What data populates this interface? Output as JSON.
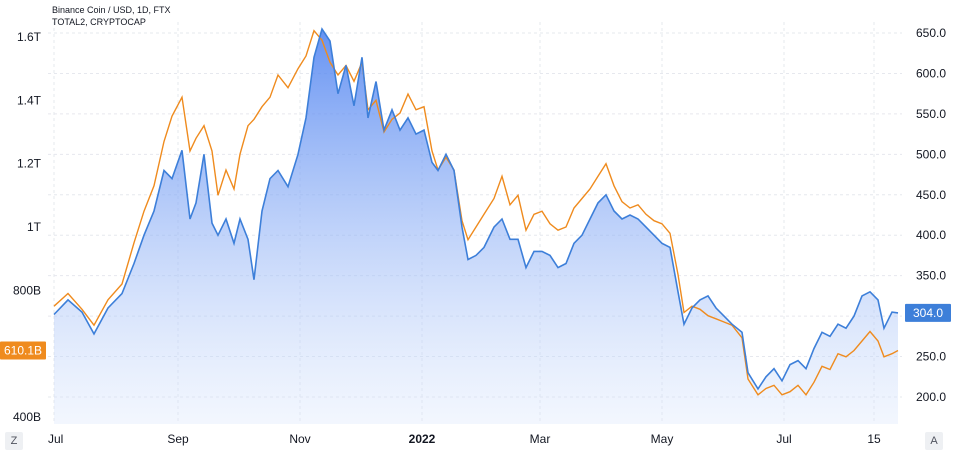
{
  "chart_data": {
    "type": "line",
    "legend": [
      "Binance Coin / USD, 1D, FTX",
      "TOTAL2, CRYPTOCAP"
    ],
    "x_labels": [
      "Jul",
      "Sep",
      "Nov",
      "2022",
      "Mar",
      "May",
      "Jul",
      "15"
    ],
    "left_axis": {
      "ticks": [
        "1.6T",
        "1.4T",
        "1.2T",
        "1T",
        "800B",
        "400B"
      ],
      "ylim": [
        400,
        1600
      ],
      "unit": "B"
    },
    "right_axis": {
      "ticks": [
        "650.0",
        "600.0",
        "550.0",
        "500.0",
        "450.0",
        "400.0",
        "350.0",
        "300.0",
        "250.0",
        "200.0"
      ],
      "ylim": [
        200,
        650
      ]
    },
    "series": [
      {
        "name": "Binance Coin / USD, 1D, FTX",
        "axis": "right",
        "color": "#3d7fd9",
        "last_value": "304.0",
        "points": [
          [
            "2021-07-01",
            302
          ],
          [
            "2021-07-08",
            320
          ],
          [
            "2021-07-15",
            305
          ],
          [
            "2021-07-21",
            278
          ],
          [
            "2021-07-28",
            310
          ],
          [
            "2021-08-04",
            328
          ],
          [
            "2021-08-10",
            365
          ],
          [
            "2021-08-15",
            400
          ],
          [
            "2021-08-20",
            430
          ],
          [
            "2021-08-25",
            480
          ],
          [
            "2021-08-29",
            470
          ],
          [
            "2021-09-03",
            505
          ],
          [
            "2021-09-07",
            420
          ],
          [
            "2021-09-10",
            440
          ],
          [
            "2021-09-14",
            500
          ],
          [
            "2021-09-18",
            415
          ],
          [
            "2021-09-21",
            400
          ],
          [
            "2021-09-25",
            420
          ],
          [
            "2021-09-29",
            390
          ],
          [
            "2021-10-02",
            420
          ],
          [
            "2021-10-06",
            395
          ],
          [
            "2021-10-09",
            345
          ],
          [
            "2021-10-13",
            430
          ],
          [
            "2021-10-17",
            470
          ],
          [
            "2021-10-21",
            480
          ],
          [
            "2021-10-26",
            460
          ],
          [
            "2021-10-31",
            500
          ],
          [
            "2021-11-04",
            545
          ],
          [
            "2021-11-08",
            620
          ],
          [
            "2021-11-12",
            655
          ],
          [
            "2021-11-16",
            640
          ],
          [
            "2021-11-20",
            575
          ],
          [
            "2021-11-24",
            610
          ],
          [
            "2021-11-28",
            560
          ],
          [
            "2021-12-02",
            620
          ],
          [
            "2021-12-05",
            545
          ],
          [
            "2021-12-09",
            590
          ],
          [
            "2021-12-13",
            530
          ],
          [
            "2021-12-17",
            555
          ],
          [
            "2021-12-21",
            530
          ],
          [
            "2021-12-25",
            545
          ],
          [
            "2021-12-29",
            525
          ],
          [
            "2022-01-02",
            530
          ],
          [
            "2022-01-06",
            490
          ],
          [
            "2022-01-09",
            480
          ],
          [
            "2022-01-13",
            500
          ],
          [
            "2022-01-17",
            480
          ],
          [
            "2022-01-21",
            410
          ],
          [
            "2022-01-24",
            370
          ],
          [
            "2022-01-28",
            375
          ],
          [
            "2022-02-01",
            385
          ],
          [
            "2022-02-06",
            410
          ],
          [
            "2022-02-10",
            420
          ],
          [
            "2022-02-14",
            395
          ],
          [
            "2022-02-18",
            395
          ],
          [
            "2022-02-22",
            360
          ],
          [
            "2022-02-26",
            380
          ],
          [
            "2022-03-02",
            380
          ],
          [
            "2022-03-06",
            375
          ],
          [
            "2022-03-10",
            360
          ],
          [
            "2022-03-14",
            365
          ],
          [
            "2022-03-18",
            390
          ],
          [
            "2022-03-22",
            400
          ],
          [
            "2022-03-26",
            420
          ],
          [
            "2022-03-30",
            440
          ],
          [
            "2022-04-03",
            450
          ],
          [
            "2022-04-07",
            430
          ],
          [
            "2022-04-11",
            420
          ],
          [
            "2022-04-15",
            425
          ],
          [
            "2022-04-19",
            420
          ],
          [
            "2022-04-23",
            410
          ],
          [
            "2022-04-27",
            400
          ],
          [
            "2022-05-01",
            390
          ],
          [
            "2022-05-05",
            385
          ],
          [
            "2022-05-09",
            330
          ],
          [
            "2022-05-12",
            290
          ],
          [
            "2022-05-16",
            310
          ],
          [
            "2022-05-20",
            320
          ],
          [
            "2022-05-24",
            325
          ],
          [
            "2022-05-28",
            310
          ],
          [
            "2022-06-01",
            300
          ],
          [
            "2022-06-05",
            290
          ],
          [
            "2022-06-10",
            280
          ],
          [
            "2022-06-13",
            230
          ],
          [
            "2022-06-18",
            210
          ],
          [
            "2022-06-22",
            225
          ],
          [
            "2022-06-26",
            235
          ],
          [
            "2022-06-30",
            220
          ],
          [
            "2022-07-04",
            240
          ],
          [
            "2022-07-08",
            245
          ],
          [
            "2022-07-12",
            235
          ],
          [
            "2022-07-16",
            260
          ],
          [
            "2022-07-20",
            280
          ],
          [
            "2022-07-24",
            275
          ],
          [
            "2022-07-28",
            290
          ],
          [
            "2022-08-01",
            285
          ],
          [
            "2022-08-05",
            300
          ],
          [
            "2022-08-09",
            325
          ],
          [
            "2022-08-13",
            330
          ],
          [
            "2022-08-17",
            320
          ],
          [
            "2022-08-20",
            285
          ],
          [
            "2022-08-24",
            305
          ],
          [
            "2022-08-27",
            304
          ]
        ]
      },
      {
        "name": "TOTAL2, CRYPTOCAP",
        "axis": "left",
        "color": "#ef8b1e",
        "last_value": "610.1B",
        "points": [
          [
            "2021-07-01",
            750
          ],
          [
            "2021-07-08",
            790
          ],
          [
            "2021-07-15",
            740
          ],
          [
            "2021-07-21",
            690
          ],
          [
            "2021-07-28",
            770
          ],
          [
            "2021-08-04",
            820
          ],
          [
            "2021-08-10",
            950
          ],
          [
            "2021-08-15",
            1050
          ],
          [
            "2021-08-20",
            1130
          ],
          [
            "2021-08-25",
            1270
          ],
          [
            "2021-08-29",
            1350
          ],
          [
            "2021-09-03",
            1410
          ],
          [
            "2021-09-07",
            1240
          ],
          [
            "2021-09-10",
            1280
          ],
          [
            "2021-09-14",
            1320
          ],
          [
            "2021-09-18",
            1240
          ],
          [
            "2021-09-21",
            1100
          ],
          [
            "2021-09-25",
            1180
          ],
          [
            "2021-09-29",
            1120
          ],
          [
            "2021-10-02",
            1230
          ],
          [
            "2021-10-06",
            1320
          ],
          [
            "2021-10-09",
            1340
          ],
          [
            "2021-10-13",
            1380
          ],
          [
            "2021-10-17",
            1410
          ],
          [
            "2021-10-21",
            1480
          ],
          [
            "2021-10-26",
            1440
          ],
          [
            "2021-10-31",
            1500
          ],
          [
            "2021-11-04",
            1540
          ],
          [
            "2021-11-08",
            1620
          ],
          [
            "2021-11-12",
            1590
          ],
          [
            "2021-11-16",
            1520
          ],
          [
            "2021-11-20",
            1480
          ],
          [
            "2021-11-24",
            1510
          ],
          [
            "2021-11-28",
            1460
          ],
          [
            "2021-12-02",
            1520
          ],
          [
            "2021-12-05",
            1370
          ],
          [
            "2021-12-09",
            1400
          ],
          [
            "2021-12-13",
            1300
          ],
          [
            "2021-12-17",
            1340
          ],
          [
            "2021-12-21",
            1360
          ],
          [
            "2021-12-25",
            1420
          ],
          [
            "2021-12-29",
            1370
          ],
          [
            "2022-01-02",
            1380
          ],
          [
            "2022-01-06",
            1240
          ],
          [
            "2022-01-09",
            1180
          ],
          [
            "2022-01-13",
            1220
          ],
          [
            "2022-01-17",
            1180
          ],
          [
            "2022-01-21",
            1020
          ],
          [
            "2022-01-24",
            960
          ],
          [
            "2022-01-28",
            1000
          ],
          [
            "2022-02-01",
            1040
          ],
          [
            "2022-02-06",
            1090
          ],
          [
            "2022-02-10",
            1160
          ],
          [
            "2022-02-14",
            1070
          ],
          [
            "2022-02-18",
            1100
          ],
          [
            "2022-02-22",
            990
          ],
          [
            "2022-02-26",
            1040
          ],
          [
            "2022-03-02",
            1050
          ],
          [
            "2022-03-06",
            1010
          ],
          [
            "2022-03-10",
            990
          ],
          [
            "2022-03-14",
            1000
          ],
          [
            "2022-03-18",
            1060
          ],
          [
            "2022-03-22",
            1090
          ],
          [
            "2022-03-26",
            1120
          ],
          [
            "2022-03-30",
            1160
          ],
          [
            "2022-04-03",
            1200
          ],
          [
            "2022-04-07",
            1130
          ],
          [
            "2022-04-11",
            1080
          ],
          [
            "2022-04-15",
            1060
          ],
          [
            "2022-04-19",
            1070
          ],
          [
            "2022-04-23",
            1040
          ],
          [
            "2022-04-27",
            1020
          ],
          [
            "2022-05-01",
            1010
          ],
          [
            "2022-05-05",
            980
          ],
          [
            "2022-05-09",
            850
          ],
          [
            "2022-05-12",
            730
          ],
          [
            "2022-05-16",
            750
          ],
          [
            "2022-05-20",
            740
          ],
          [
            "2022-05-24",
            720
          ],
          [
            "2022-05-28",
            710
          ],
          [
            "2022-06-01",
            700
          ],
          [
            "2022-06-05",
            690
          ],
          [
            "2022-06-10",
            650
          ],
          [
            "2022-06-13",
            520
          ],
          [
            "2022-06-18",
            470
          ],
          [
            "2022-06-22",
            490
          ],
          [
            "2022-06-26",
            500
          ],
          [
            "2022-06-30",
            470
          ],
          [
            "2022-07-04",
            480
          ],
          [
            "2022-07-08",
            500
          ],
          [
            "2022-07-12",
            470
          ],
          [
            "2022-07-16",
            510
          ],
          [
            "2022-07-20",
            560
          ],
          [
            "2022-07-24",
            550
          ],
          [
            "2022-07-28",
            600
          ],
          [
            "2022-08-01",
            590
          ],
          [
            "2022-08-05",
            610
          ],
          [
            "2022-08-09",
            640
          ],
          [
            "2022-08-13",
            670
          ],
          [
            "2022-08-17",
            640
          ],
          [
            "2022-08-20",
            590
          ],
          [
            "2022-08-24",
            600
          ],
          [
            "2022-08-27",
            610
          ]
        ]
      }
    ],
    "grid": true
  },
  "toolbar": {
    "left_button": "Z",
    "right_button": "A"
  }
}
